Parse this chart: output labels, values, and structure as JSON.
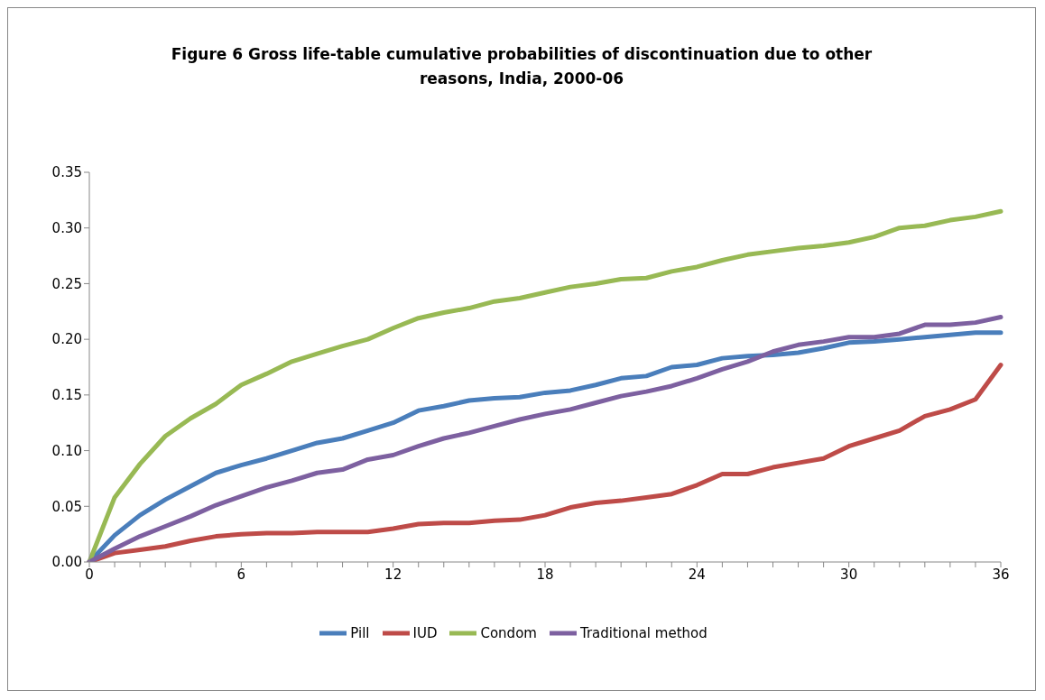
{
  "chart_data": {
    "type": "line",
    "title": "Figure 6 Gross life-table cumulative probabilities of discontinuation due to other reasons, India, 2000-06",
    "categories": [
      "0",
      null,
      null,
      null,
      null,
      null,
      "6",
      null,
      null,
      null,
      null,
      null,
      "12",
      null,
      null,
      null,
      null,
      null,
      "18",
      null,
      null,
      null,
      null,
      null,
      "24",
      null,
      null,
      null,
      null,
      null,
      "30",
      null,
      null,
      null,
      null,
      null,
      "36"
    ],
    "series": [
      {
        "name": "Pill",
        "color": "#4a7ebb",
        "values": [
          0,
          0.024,
          0.042,
          0.056,
          0.068,
          0.08,
          0.087,
          0.093,
          0.1,
          0.107,
          0.111,
          0.118,
          0.125,
          0.136,
          0.14,
          0.145,
          0.147,
          0.148,
          0.152,
          0.154,
          0.159,
          0.165,
          0.167,
          0.175,
          0.177,
          0.183,
          0.185,
          0.186,
          0.188,
          0.192,
          0.197,
          0.198,
          0.2,
          0.202,
          0.204,
          0.206,
          0.206
        ]
      },
      {
        "name": "IUD",
        "color": "#be4b48",
        "values": [
          0,
          0.008,
          0.011,
          0.014,
          0.019,
          0.023,
          0.025,
          0.026,
          0.026,
          0.027,
          0.027,
          0.027,
          0.03,
          0.034,
          0.035,
          0.035,
          0.037,
          0.038,
          0.042,
          0.049,
          0.053,
          0.055,
          0.058,
          0.061,
          0.069,
          0.079,
          0.079,
          0.085,
          0.089,
          0.093,
          0.104,
          0.111,
          0.118,
          0.131,
          0.137,
          0.146,
          0.177
        ]
      },
      {
        "name": "Condom",
        "color": "#98b954",
        "values": [
          0,
          0.058,
          0.088,
          0.113,
          0.129,
          0.142,
          0.159,
          0.169,
          0.18,
          0.187,
          0.194,
          0.2,
          0.21,
          0.219,
          0.224,
          0.228,
          0.234,
          0.237,
          0.242,
          0.247,
          0.25,
          0.254,
          0.255,
          0.261,
          0.265,
          0.271,
          0.276,
          0.279,
          0.282,
          0.284,
          0.287,
          0.292,
          0.3,
          0.302,
          0.307,
          0.31,
          0.315
        ]
      },
      {
        "name": "Traditional method",
        "color": "#7d60a0",
        "values": [
          0,
          0.012,
          0.023,
          0.032,
          0.041,
          0.051,
          0.059,
          0.067,
          0.073,
          0.08,
          0.083,
          0.092,
          0.096,
          0.104,
          0.111,
          0.116,
          0.122,
          0.128,
          0.133,
          0.137,
          0.143,
          0.149,
          0.153,
          0.158,
          0.165,
          0.173,
          0.18,
          0.189,
          0.195,
          0.198,
          0.202,
          0.202,
          0.205,
          0.213,
          0.213,
          0.215,
          0.22
        ]
      }
    ],
    "ylim": [
      0,
      0.35
    ],
    "yticks": [
      {
        "value": 0,
        "label": "0.00"
      },
      {
        "value": 0.05,
        "label": "0.05"
      },
      {
        "value": 0.1,
        "label": "0.10"
      },
      {
        "value": 0.15,
        "label": "0.15"
      },
      {
        "value": 0.2,
        "label": "0.20"
      },
      {
        "value": 0.25,
        "label": "0.25"
      },
      {
        "value": 0.3,
        "label": "0.30"
      },
      {
        "value": 0.35,
        "label": "0.35"
      }
    ],
    "grid": false,
    "legend": "bottom",
    "marker": "none",
    "line_style": "solid"
  }
}
